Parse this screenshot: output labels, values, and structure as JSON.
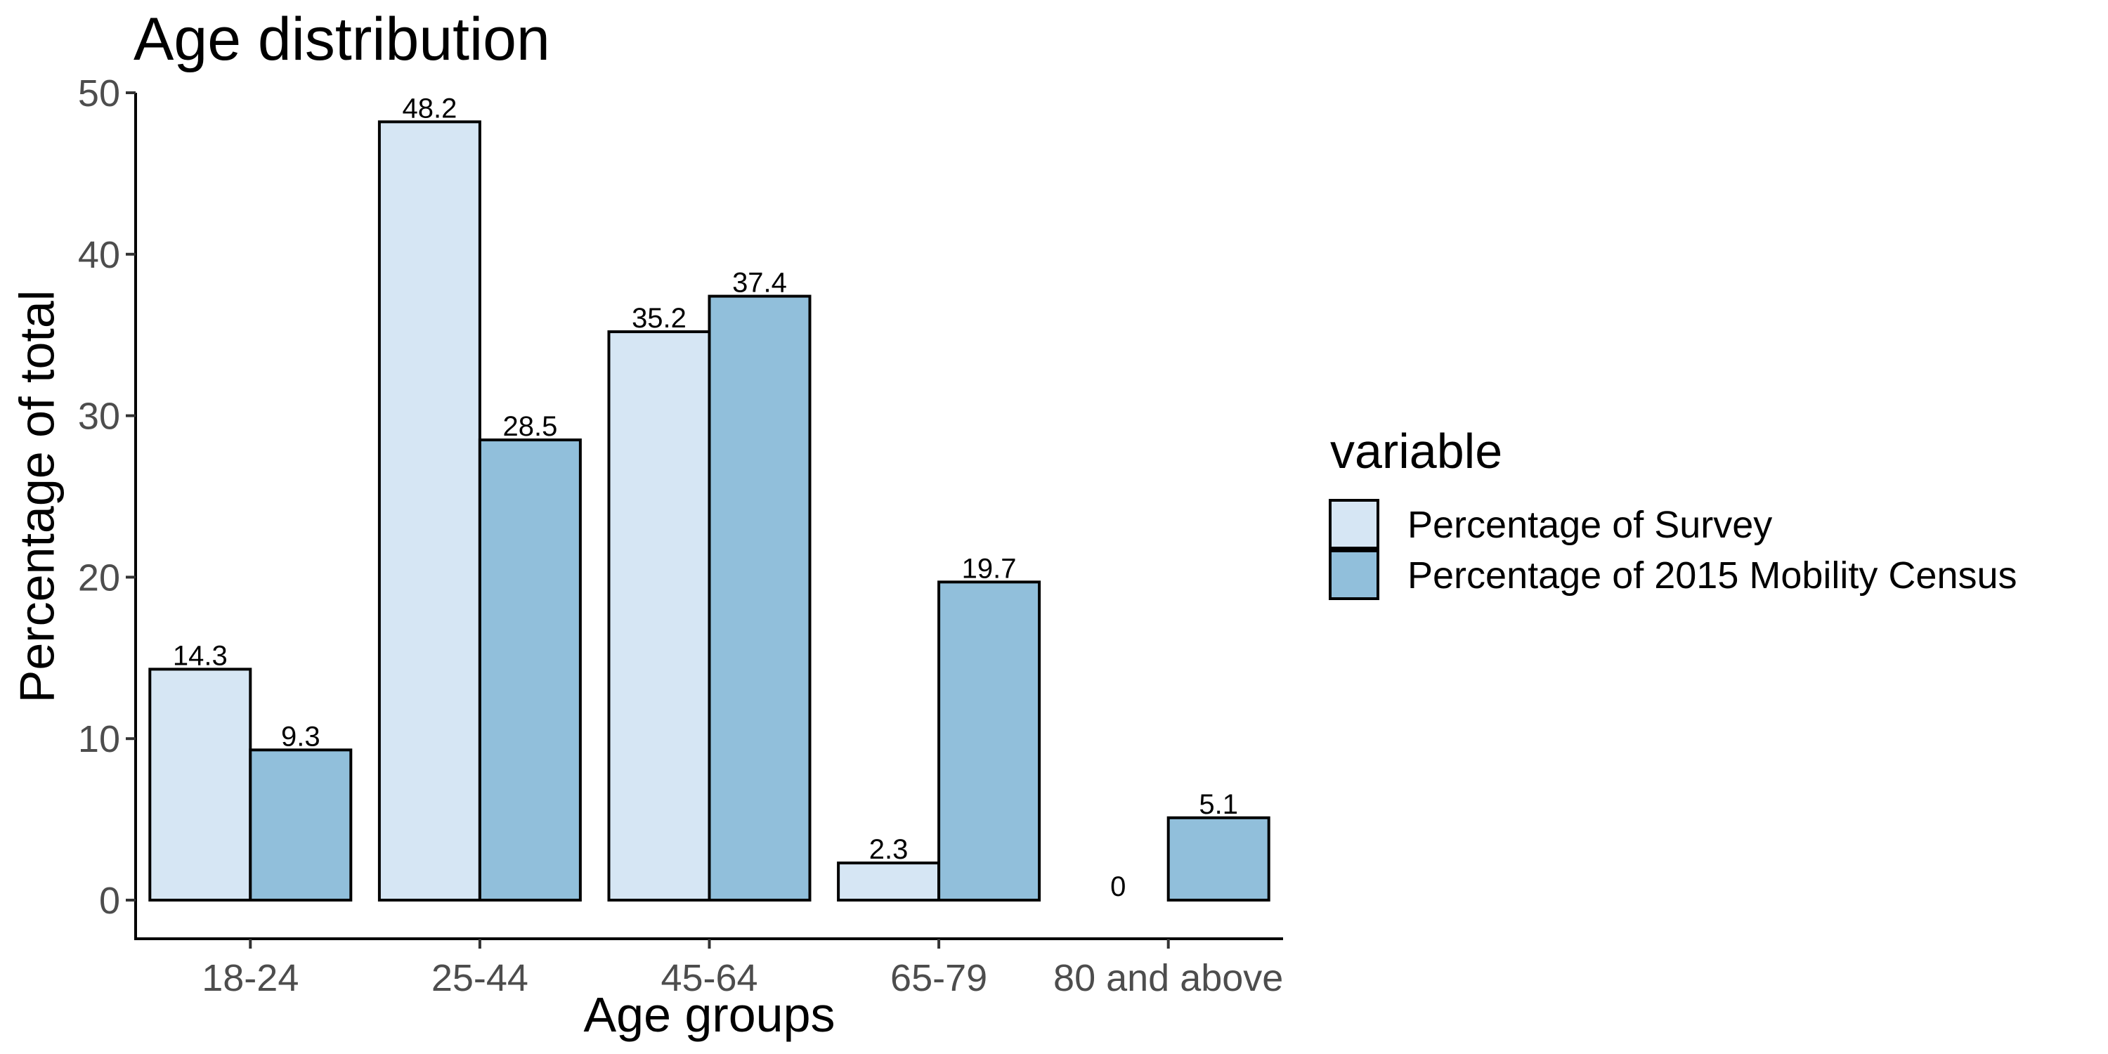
{
  "chart_data": {
    "type": "bar",
    "title": "Age distribution",
    "xlabel": "Age groups",
    "ylabel": "Percentage of total",
    "categories": [
      "18-24",
      "25-44",
      "45-64",
      "65-79",
      "80 and above"
    ],
    "ylim": [
      0,
      52.5
    ],
    "yticks": [
      0,
      10,
      20,
      30,
      40,
      50
    ],
    "grid": false,
    "legend": {
      "title": "variable",
      "placement": "right"
    },
    "series": [
      {
        "name": "Percentage of Survey",
        "color": "#d6e6f4",
        "values": [
          14.3,
          48.2,
          35.2,
          2.3,
          0
        ]
      },
      {
        "name": "Percentage of 2015 Mobility Census",
        "color": "#91bfdb",
        "values": [
          9.3,
          28.5,
          37.4,
          19.7,
          5.1
        ]
      }
    ]
  }
}
